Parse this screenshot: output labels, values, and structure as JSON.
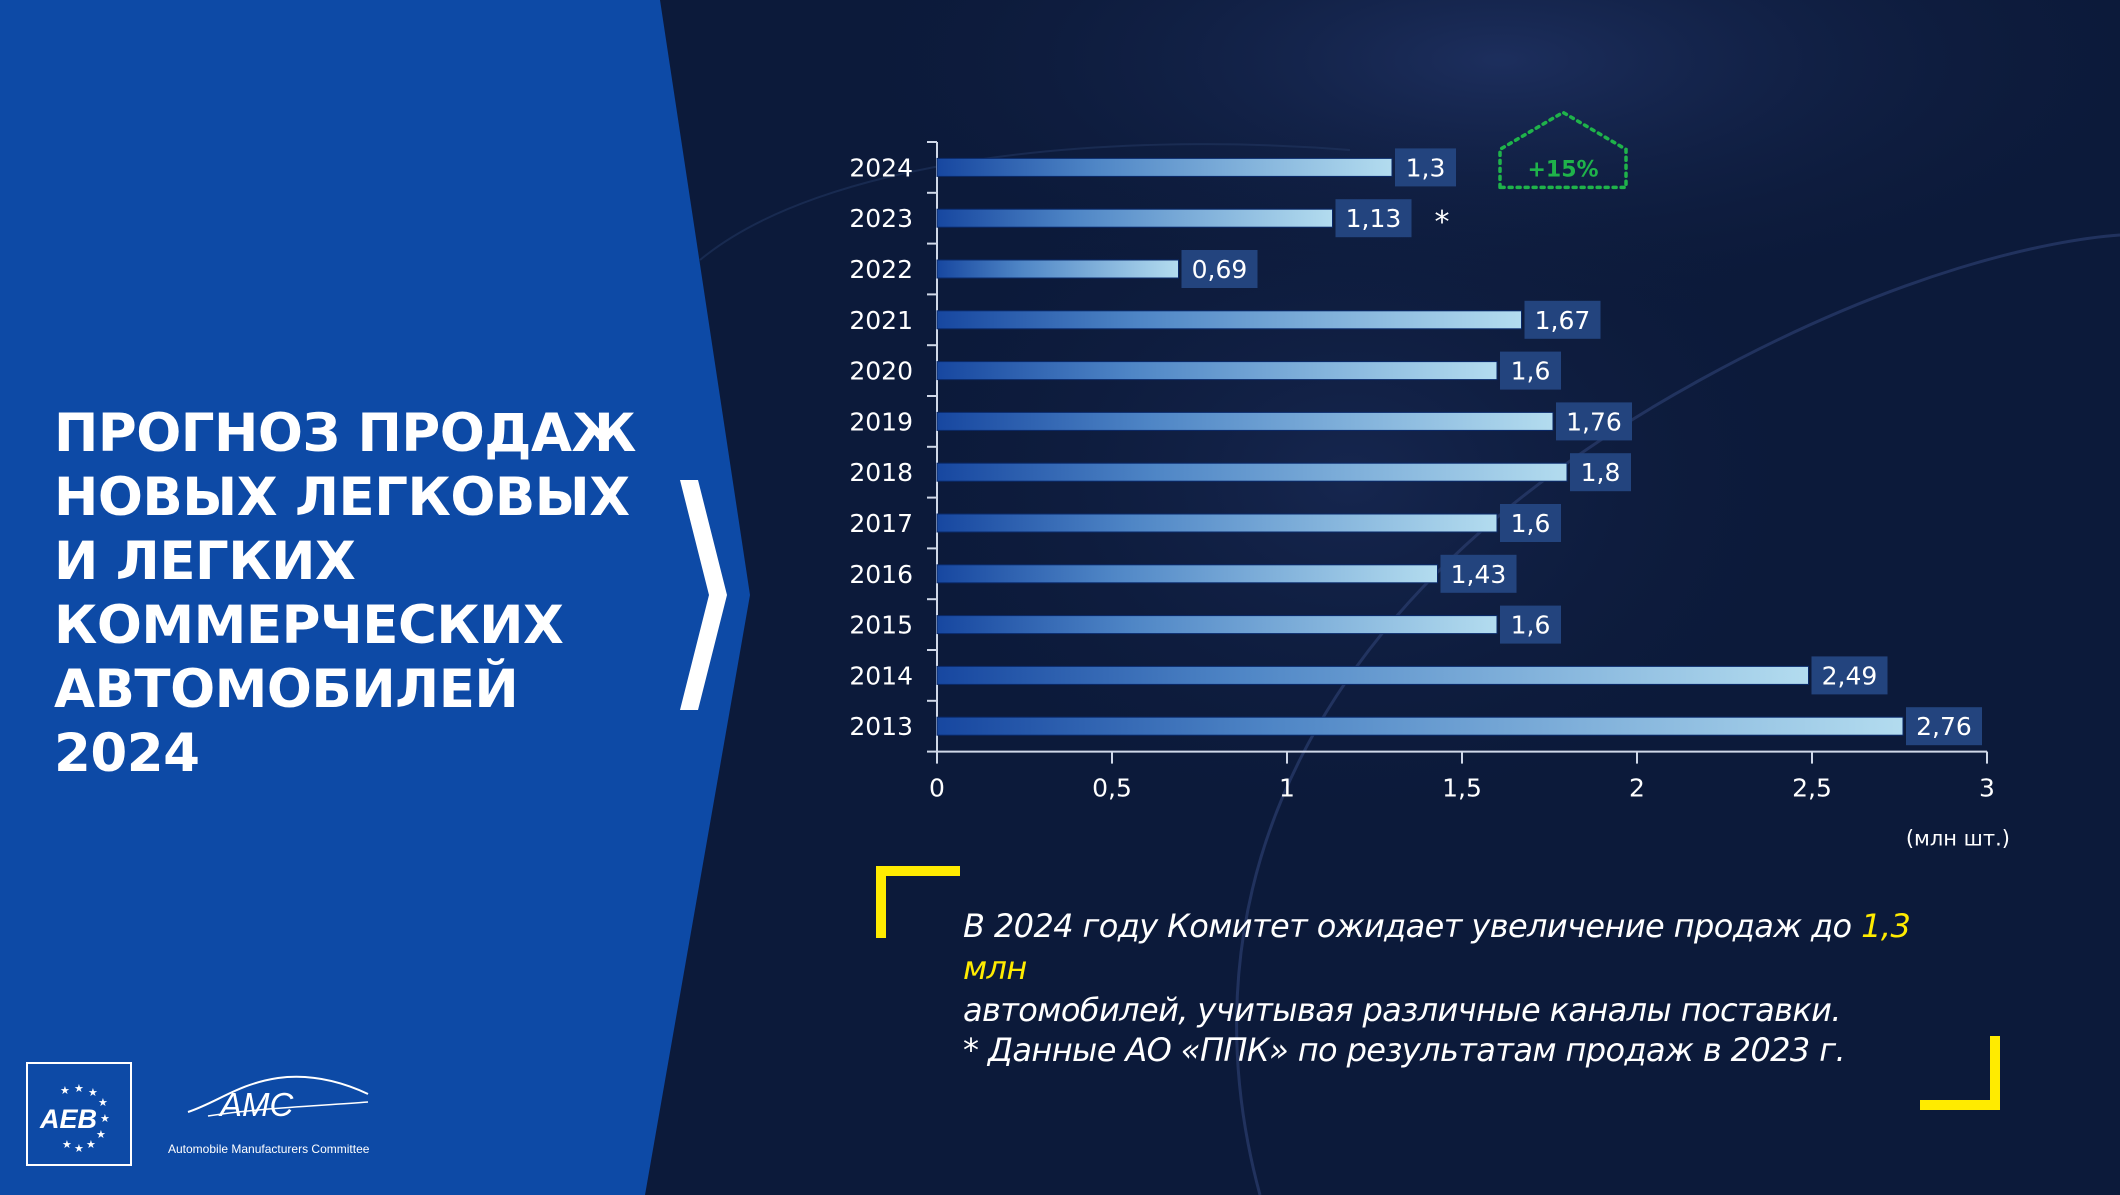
{
  "slide": {
    "title_lines": [
      "ПРОГНОЗ ПРОДАЖ",
      "НОВЫХ ЛЕГКОВЫХ",
      "И ЛЕГКИХ",
      "КОММЕРЧЕСКИХ",
      "АВТОМОБИЛЕЙ",
      "2024"
    ],
    "colors": {
      "left_panel": "#0d4aa6",
      "right_bg": "#0c1a3a",
      "bar_light": "#9fd0e8",
      "bar_dark": "#1747a0",
      "label_bg": "#23447e",
      "growth_green": "#1fb34a",
      "bracket_yellow": "#ffeb00"
    }
  },
  "chart_data": {
    "type": "bar",
    "orientation": "horizontal",
    "categories": [
      "2024",
      "2023",
      "2022",
      "2021",
      "2020",
      "2019",
      "2018",
      "2017",
      "2016",
      "2015",
      "2014",
      "2013"
    ],
    "values": [
      1.3,
      1.13,
      0.69,
      1.67,
      1.6,
      1.76,
      1.8,
      1.6,
      1.43,
      1.6,
      2.49,
      2.76
    ],
    "value_labels": [
      "1,3",
      "1,13",
      "0,69",
      "1,67",
      "1,6",
      "1,76",
      "1,8",
      "1,6",
      "1,43",
      "1,6",
      "2,49",
      "2,76"
    ],
    "xlim": [
      0,
      3
    ],
    "xticks": [
      0,
      0.5,
      1,
      1.5,
      2,
      2.5,
      3
    ],
    "xtick_labels": [
      "0",
      "0,5",
      "1",
      "1,5",
      "2",
      "2,5",
      "3"
    ],
    "unit": "(млн шт.)",
    "annotations": {
      "asterisk_category": "2023",
      "asterisk": "*",
      "growth_label": "+15%",
      "growth_category": "2024"
    },
    "grid": false
  },
  "callout": {
    "line1_before": "В 2024 году Комитет ожидает увеличение продаж до ",
    "highlight": "1,3 млн",
    "line2": "автомобилей, учитывая различные каналы поставки.",
    "footnote": "* Данные АО «ППК» по результатам продаж в 2023 г."
  },
  "logos": {
    "aeb": "AEB",
    "amc": "AMC",
    "amc_subtitle": "Automobile Manufacturers Committee"
  }
}
